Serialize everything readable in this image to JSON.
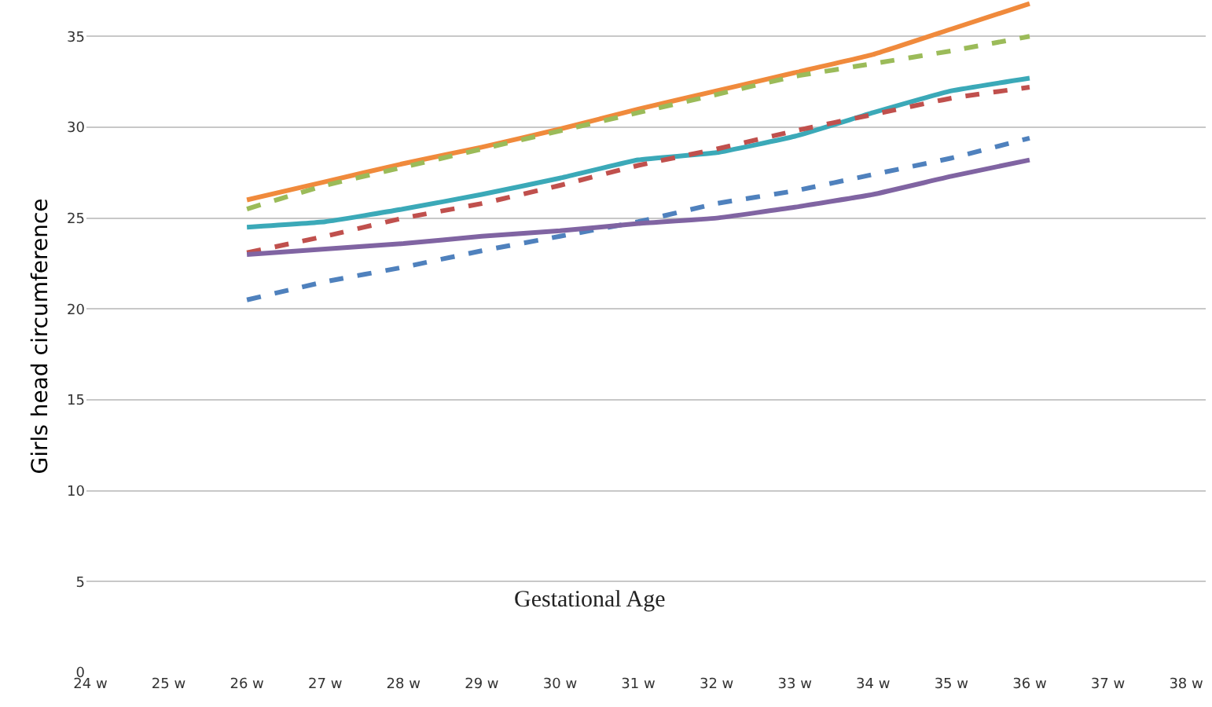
{
  "chart_data": {
    "type": "line",
    "xlabel": "Gestational Age",
    "ylabel": "Girls head circumference",
    "categories": [
      "24 w",
      "25 w",
      "26 w",
      "27 w",
      "28 w",
      "29 w",
      "30 w",
      "31 w",
      "32 w",
      "33 w",
      "34 w",
      "35 w",
      "36 w",
      "37 w",
      "38 w"
    ],
    "ylim": [
      0,
      37
    ],
    "yticks": [
      0,
      5,
      10,
      15,
      20,
      25,
      30,
      35
    ],
    "grid": "y",
    "marker": "none",
    "series": [
      {
        "color": "#f08a3c",
        "line_style": "solid",
        "values": [
          null,
          null,
          26,
          27,
          28,
          28.9,
          29.9,
          31,
          32,
          33,
          34,
          35.4,
          36.8,
          null,
          null
        ]
      },
      {
        "color": "#9bbb59",
        "line_style": "dashed",
        "values": [
          null,
          null,
          25.5,
          26.8,
          27.8,
          28.8,
          29.8,
          30.8,
          31.8,
          32.8,
          33.5,
          34.2,
          35,
          null,
          null
        ]
      },
      {
        "color": "#3ba9b8",
        "line_style": "solid",
        "values": [
          null,
          null,
          24.5,
          24.8,
          25.5,
          26.3,
          27.2,
          28.2,
          28.6,
          29.5,
          30.8,
          32,
          32.7,
          null,
          null
        ]
      },
      {
        "color": "#c0504d",
        "line_style": "dashed",
        "values": [
          null,
          null,
          23.1,
          24,
          25,
          25.8,
          26.8,
          27.9,
          28.8,
          29.8,
          30.7,
          31.6,
          32.2,
          null,
          null
        ]
      },
      {
        "color": "#4f81bd",
        "line_style": "dashed",
        "values": [
          null,
          null,
          20.5,
          21.5,
          22.3,
          23.2,
          24,
          24.8,
          25.8,
          26.5,
          27.4,
          28.3,
          29.4,
          null,
          null
        ]
      },
      {
        "color": "#8064a2",
        "line_style": "solid",
        "values": [
          null,
          null,
          23,
          23.3,
          23.6,
          24,
          24.3,
          24.7,
          25,
          25.6,
          26.3,
          27.3,
          28.2,
          null,
          null
        ]
      }
    ]
  }
}
